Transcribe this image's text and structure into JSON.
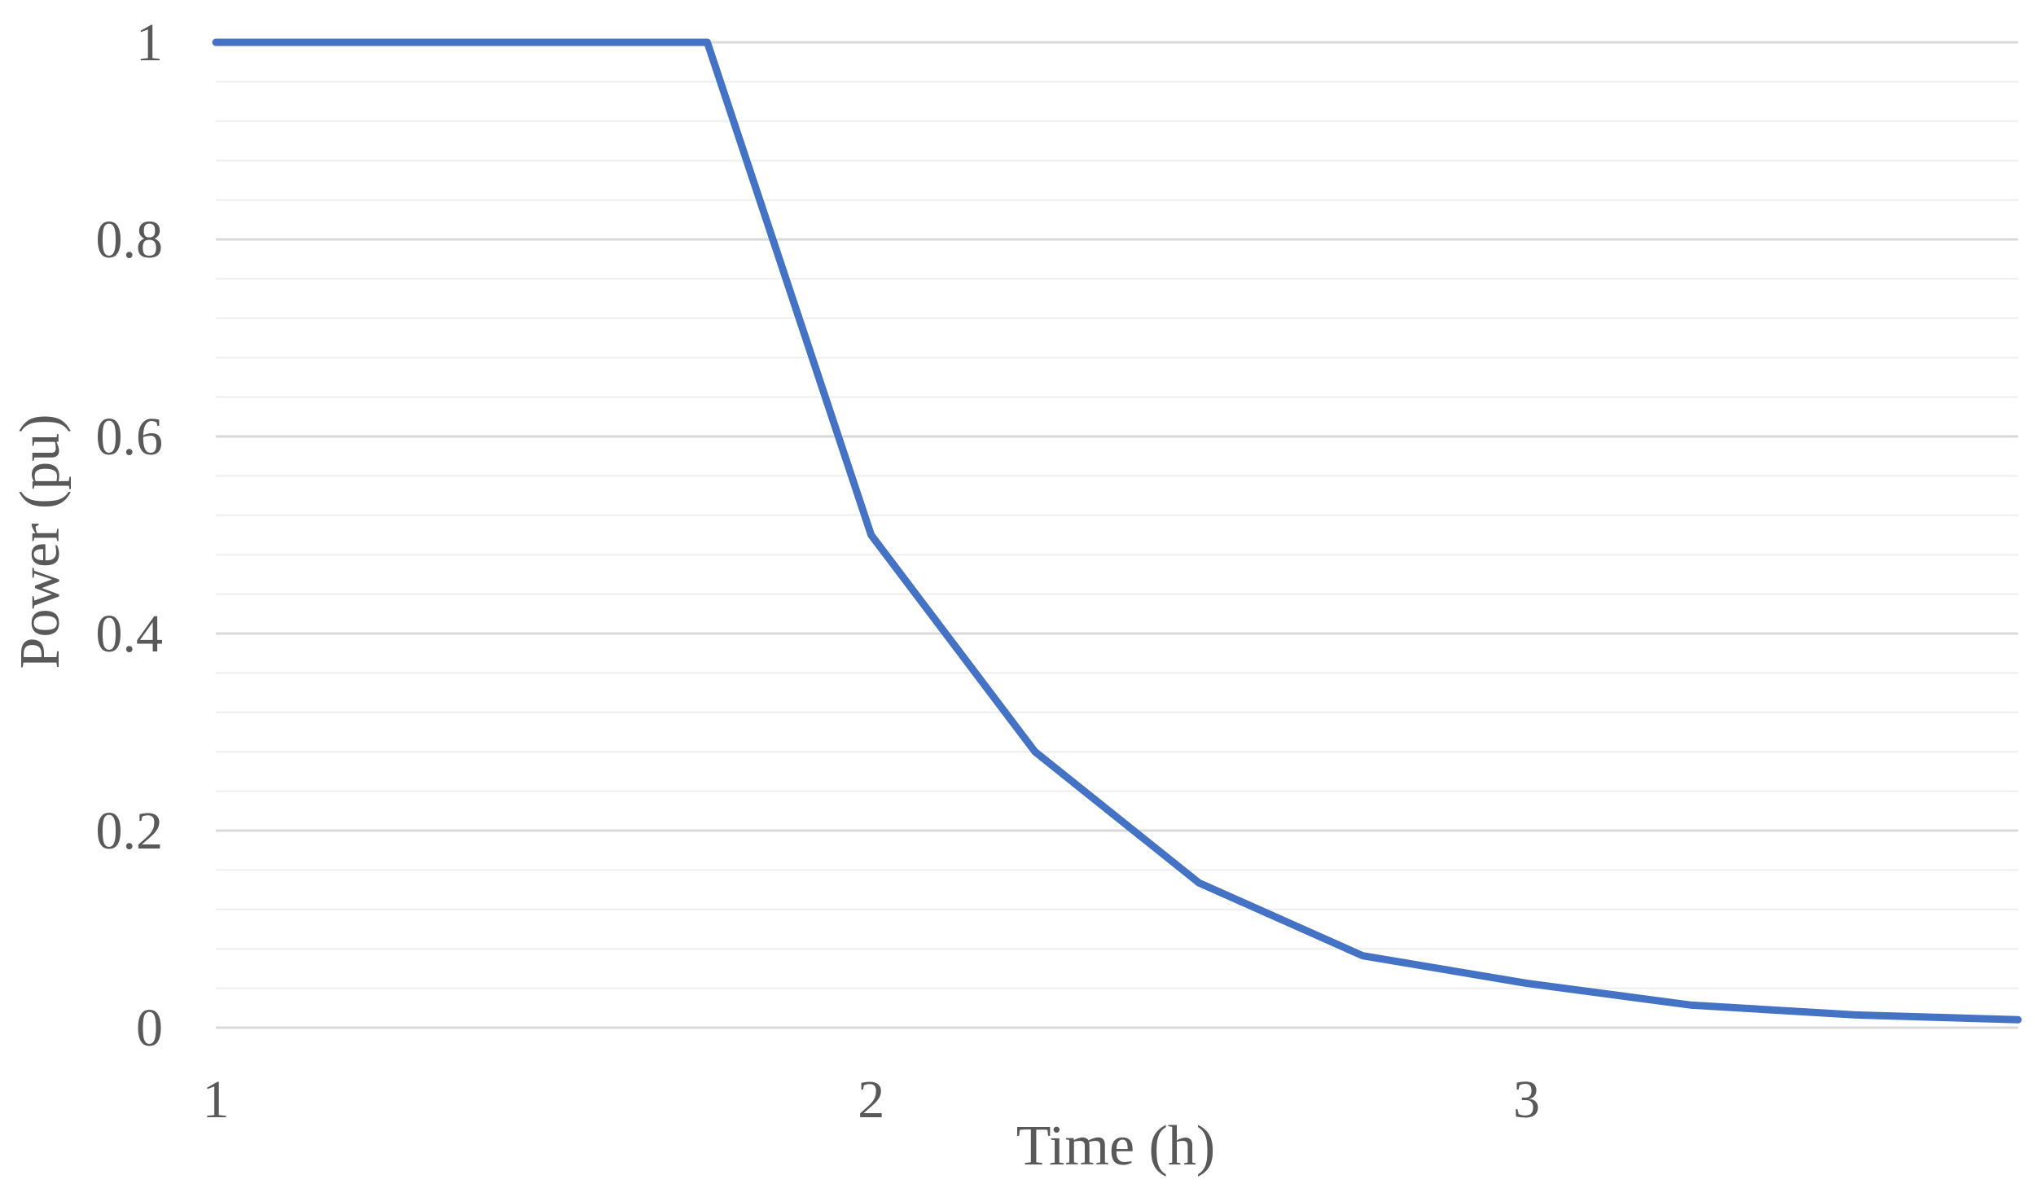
{
  "chart_data": {
    "type": "line",
    "title": "",
    "xlabel": "Time (h)",
    "ylabel": "Power (pu)",
    "xlim": [
      1,
      3.75
    ],
    "ylim": [
      0,
      1
    ],
    "x_ticks": [
      1,
      2,
      3
    ],
    "x_tick_labels": [
      "1",
      "2",
      "3"
    ],
    "y_ticks": [
      0,
      0.2,
      0.4,
      0.6,
      0.8,
      1
    ],
    "y_tick_labels": [
      "0",
      "0.2",
      "0.4",
      "0.6",
      "0.8",
      "1"
    ],
    "y_minor_step": 0.04,
    "grid": true,
    "legend": "none",
    "series": [
      {
        "color": "#4472c4",
        "x": [
          1,
          1.75,
          2,
          2.25,
          2.5,
          2.75,
          3,
          3.25,
          3.5,
          3.75
        ],
        "y": [
          1,
          1,
          0.5,
          0.28,
          0.147,
          0.073,
          0.045,
          0.023,
          0.013,
          0.008
        ]
      }
    ]
  }
}
